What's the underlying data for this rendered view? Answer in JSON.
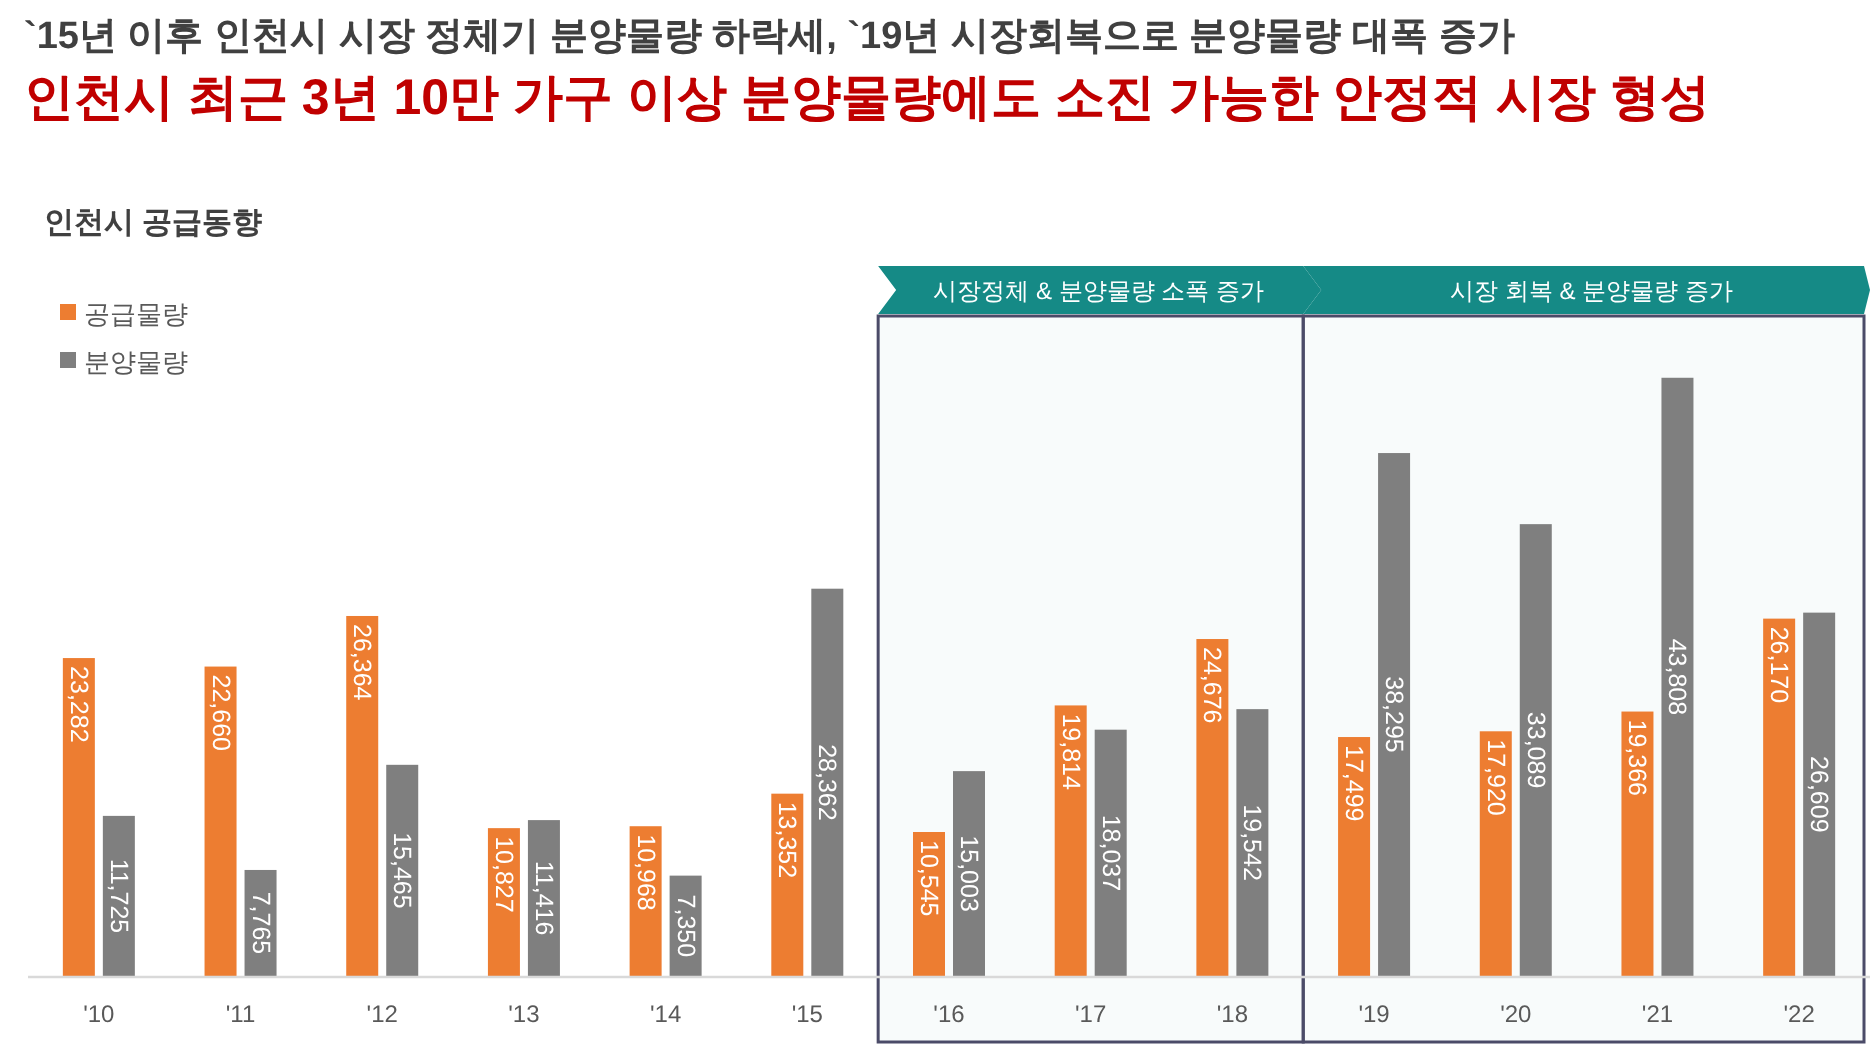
{
  "chart_data": {
    "type": "bar",
    "title": "`15년 이후 인천시 시장 정체기 분양물량 하락세, `19년 시장회복으로 분양물량 대폭 증가",
    "subtitle": "인천시 최근 3년 10만 가구 이상 분양물량에도 소진 가능한 안정적 시장 형성",
    "annotations": [
      "인천시 공급동향"
    ],
    "categories": [
      "'10",
      "'11",
      "'12",
      "'13",
      "'14",
      "'15",
      "'16",
      "'17",
      "'18",
      "'19",
      "'20",
      "'21",
      "'22"
    ],
    "series": [
      {
        "name": "공급물량",
        "color": "#ed7d31",
        "values": [
          23282,
          22660,
          26364,
          10827,
          10968,
          13352,
          10545,
          19814,
          24676,
          17499,
          17920,
          19366,
          26170
        ],
        "value_labels": [
          "23,282",
          "22,660",
          "26,364",
          "10,827",
          "10,968",
          "13,352",
          "10,545",
          "19,814",
          "24,676",
          "17,499",
          "17,920",
          "19,366",
          "26,170"
        ]
      },
      {
        "name": "분양물량",
        "color": "#7f7f7f",
        "values": [
          11725,
          7765,
          15465,
          11416,
          7350,
          28362,
          15003,
          18037,
          19542,
          38295,
          33089,
          43808,
          26609
        ],
        "value_labels": [
          "11,725",
          "7,765",
          "15,465",
          "11,416",
          "7,350",
          "28,362",
          "15,003",
          "18,037",
          "19,542",
          "38,295",
          "33,089",
          "43,808",
          "26,609"
        ]
      }
    ],
    "legend": "top left",
    "bands": [
      {
        "axis": "x",
        "from": "'16",
        "to": "'18",
        "label": "시장정체 & 분양물량 소폭 증가",
        "color": "#158a86"
      },
      {
        "axis": "x",
        "from": "'19",
        "to": "'22",
        "label": "시장 회복 & 분양물량 증가",
        "color": "#158a86"
      }
    ]
  }
}
